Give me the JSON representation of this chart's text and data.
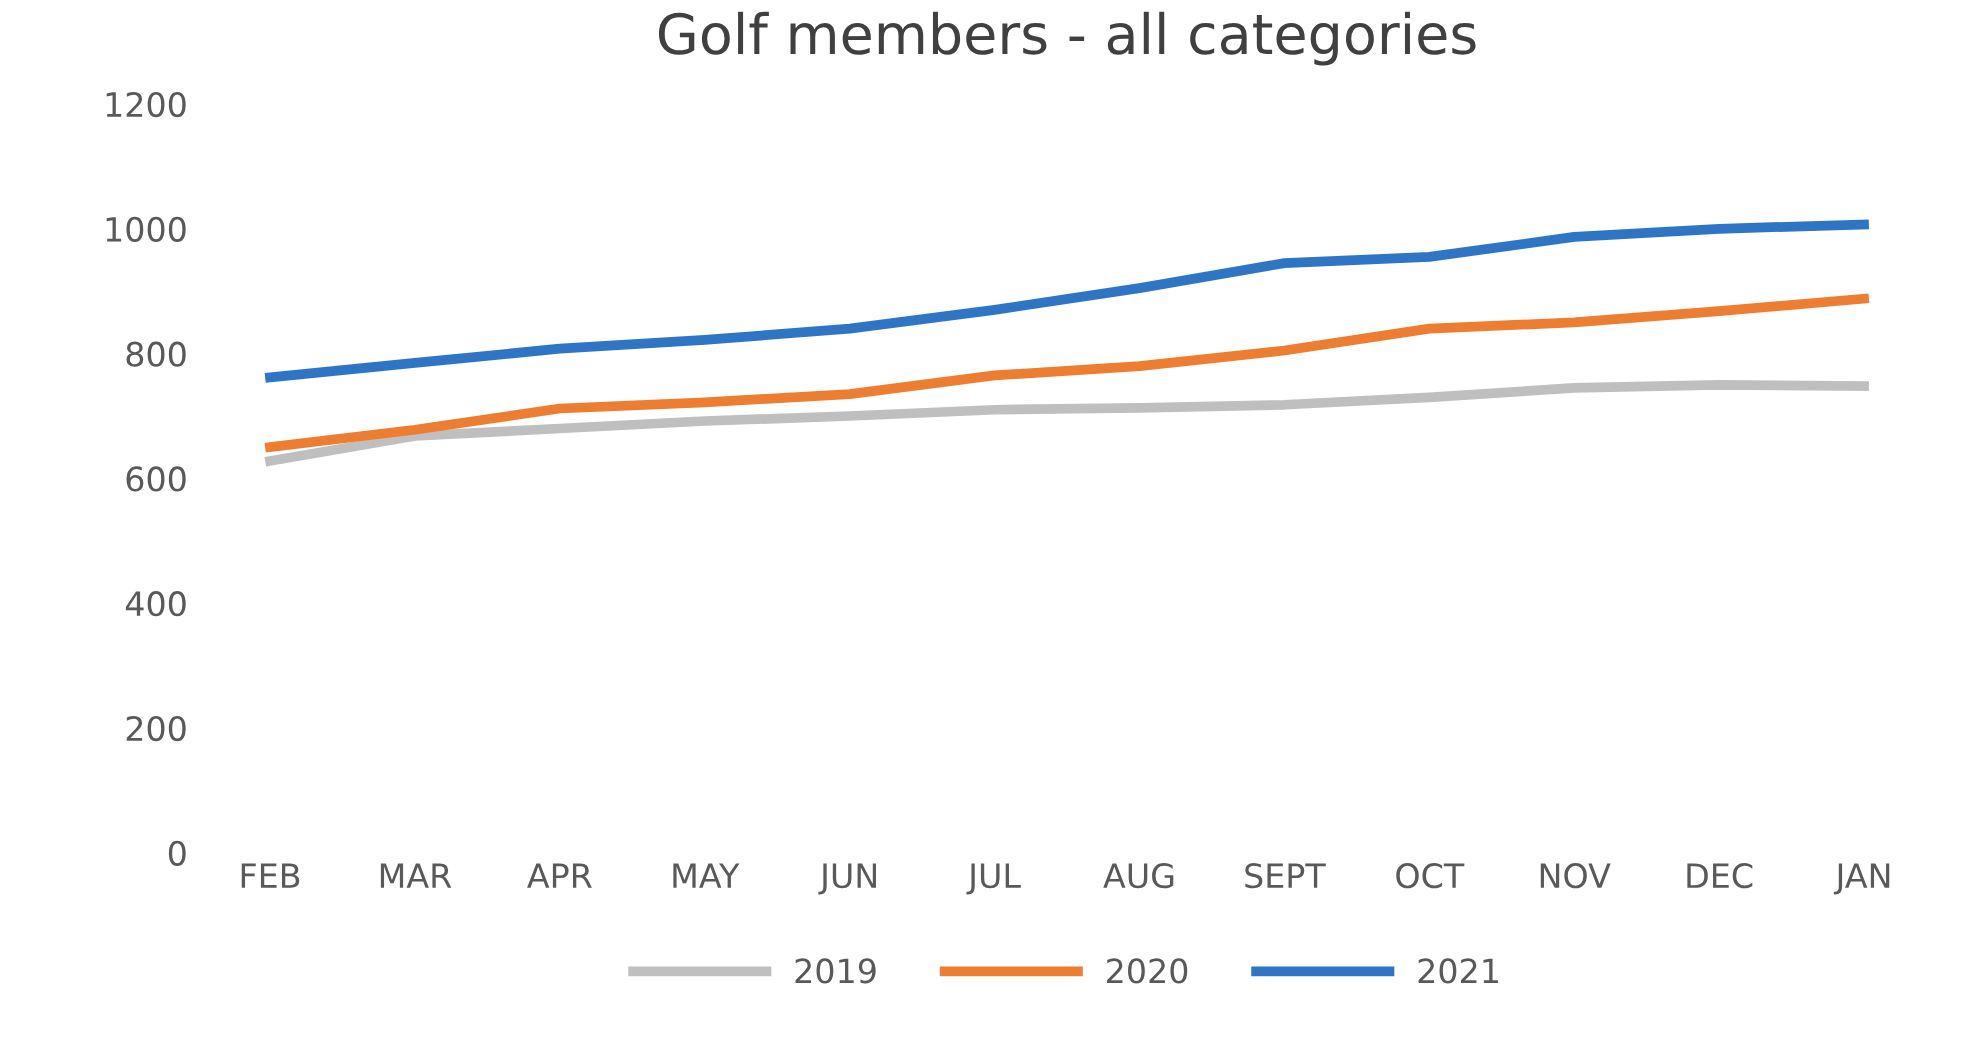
{
  "chart_data": {
    "type": "line",
    "title": "Golf members - all categories",
    "categories": [
      "FEB",
      "MAR",
      "APR",
      "MAY",
      "JUN",
      "JUL",
      "AUG",
      "SEPT",
      "OCT",
      "NOV",
      "DEC",
      "JAN"
    ],
    "series": [
      {
        "name": "2019",
        "color": "#bfbfbf",
        "values": [
          628,
          668,
          680,
          692,
          700,
          710,
          713,
          718,
          730,
          745,
          750,
          748
        ]
      },
      {
        "name": "2020",
        "color": "#ed7d31",
        "values": [
          650,
          678,
          712,
          722,
          735,
          765,
          780,
          805,
          840,
          850,
          868,
          888
        ]
      },
      {
        "name": "2021",
        "color": "#2e75c6",
        "values": [
          762,
          785,
          808,
          822,
          840,
          870,
          905,
          945,
          955,
          987,
          1000,
          1007
        ]
      }
    ],
    "ylim": [
      0,
      1200
    ],
    "yticks": [
      0,
      200,
      400,
      600,
      800,
      1000,
      1200
    ],
    "grid": false,
    "legend": "bottom",
    "marker": "none",
    "line_style": "solid"
  }
}
